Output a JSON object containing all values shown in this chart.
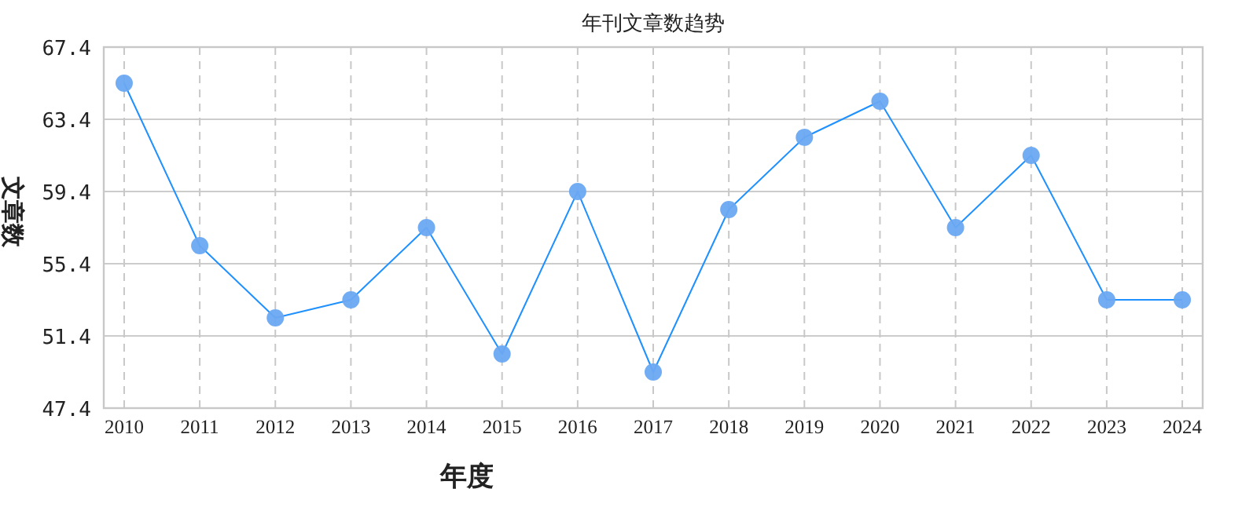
{
  "chart_data": {
    "type": "line",
    "title": "年刊文章数趋势",
    "xlabel": "年度",
    "ylabel": "文章数",
    "categories": [
      "2010",
      "2011",
      "2012",
      "2013",
      "2014",
      "2015",
      "2016",
      "2017",
      "2018",
      "2019",
      "2020",
      "2021",
      "2022",
      "2023",
      "2024"
    ],
    "series": [
      {
        "color": "#1e90ff",
        "values": [
          65.4,
          56.4,
          52.4,
          53.4,
          57.4,
          50.4,
          59.4,
          49.4,
          58.4,
          62.4,
          64.4,
          57.4,
          61.4,
          53.4,
          53.4
        ]
      }
    ],
    "ylim": [
      47.4,
      67.4
    ],
    "yticks": [
      47.4,
      51.4,
      55.4,
      59.4,
      63.4,
      67.4
    ],
    "grid": true,
    "marker": "circle",
    "line_style": "solid"
  }
}
